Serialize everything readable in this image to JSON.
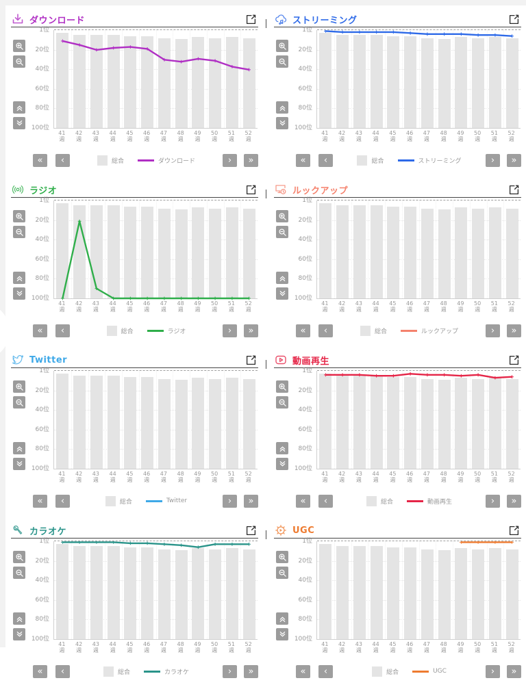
{
  "legend": {
    "overall_label": "総合",
    "overall_color": "#e4e4e4"
  },
  "controls": {
    "first": "«",
    "prev": "‹",
    "next": "›",
    "last": "»"
  },
  "axes": {
    "y_labels": [
      "1位",
      "20位",
      "40位",
      "60位",
      "80位",
      "100位"
    ],
    "weeks": [
      "41",
      "42",
      "43",
      "44",
      "45",
      "46",
      "47",
      "48",
      "49",
      "50",
      "51",
      "52"
    ],
    "week_suffix": "週"
  },
  "panels": [
    {
      "title": "ダウンロード",
      "color": "#b02fc4",
      "icon": "download-icon"
    },
    {
      "title": "ストリーミング",
      "color": "#2e6ae8",
      "icon": "streaming-icon"
    },
    {
      "title": "ラジオ",
      "color": "#2fae4a",
      "icon": "radio-icon"
    },
    {
      "title": "ルックアップ",
      "color": "#f5826d",
      "icon": "lookup-icon"
    },
    {
      "title": "Twitter",
      "color": "#3fa9e8",
      "icon": "twitter-icon"
    },
    {
      "title": "動画再生",
      "color": "#e52547",
      "icon": "video-play-icon"
    },
    {
      "title": "カラオケ",
      "color": "#2a948a",
      "icon": "karaoke-icon"
    },
    {
      "title": "UGC",
      "color": "#ee7b30",
      "icon": "ugc-icon"
    }
  ],
  "chart_data": [
    {
      "type": "bar",
      "title": "ダウンロード",
      "categories": [
        "41週",
        "42週",
        "43週",
        "44週",
        "45週",
        "46週",
        "47週",
        "48週",
        "49週",
        "50週",
        "51週",
        "52週"
      ],
      "y_ticks": [
        "1位",
        "20位",
        "40位",
        "60位",
        "80位",
        "100位"
      ],
      "y_range": [
        1,
        100
      ],
      "y_inverted": true,
      "legend_position": "bottom",
      "series": [
        {
          "name": "総合",
          "type": "bar",
          "color": "#e4e4e4",
          "values": [
            4,
            6,
            6,
            6,
            7,
            7,
            9,
            10,
            8,
            9,
            8,
            9
          ]
        },
        {
          "name": "ダウンロード",
          "type": "line",
          "color": "#b02fc4",
          "values": [
            12,
            16,
            21,
            19,
            18,
            20,
            31,
            33,
            30,
            32,
            38,
            41
          ]
        }
      ]
    },
    {
      "type": "bar",
      "title": "ストリーミング",
      "categories": [
        "41週",
        "42週",
        "43週",
        "44週",
        "45週",
        "46週",
        "47週",
        "48週",
        "49週",
        "50週",
        "51週",
        "52週"
      ],
      "y_ticks": [
        "1位",
        "20位",
        "40位",
        "60位",
        "80位",
        "100位"
      ],
      "y_range": [
        1,
        100
      ],
      "y_inverted": true,
      "legend_position": "bottom",
      "series": [
        {
          "name": "総合",
          "type": "bar",
          "color": "#e4e4e4",
          "values": [
            4,
            6,
            6,
            6,
            7,
            7,
            9,
            10,
            8,
            9,
            8,
            9
          ]
        },
        {
          "name": "ストリーミング",
          "type": "line",
          "color": "#2e6ae8",
          "values": [
            2,
            3,
            3,
            3,
            3,
            4,
            5,
            5,
            5,
            6,
            6,
            7
          ]
        }
      ]
    },
    {
      "type": "bar",
      "title": "ラジオ",
      "categories": [
        "41週",
        "42週",
        "43週",
        "44週",
        "45週",
        "46週",
        "47週",
        "48週",
        "49週",
        "50週",
        "51週",
        "52週"
      ],
      "y_ticks": [
        "1位",
        "20位",
        "40位",
        "60位",
        "80位",
        "100位"
      ],
      "y_range": [
        1,
        100
      ],
      "y_inverted": true,
      "legend_position": "bottom",
      "series": [
        {
          "name": "総合",
          "type": "bar",
          "color": "#e4e4e4",
          "values": [
            4,
            6,
            6,
            6,
            7,
            7,
            9,
            10,
            8,
            9,
            8,
            9
          ]
        },
        {
          "name": "ラジオ",
          "type": "line",
          "color": "#2fae4a",
          "values": [
            100,
            22,
            90,
            100,
            100,
            100,
            100,
            100,
            100,
            100,
            100,
            100
          ]
        }
      ]
    },
    {
      "type": "bar",
      "title": "ルックアップ",
      "categories": [
        "41週",
        "42週",
        "43週",
        "44週",
        "45週",
        "46週",
        "47週",
        "48週",
        "49週",
        "50週",
        "51週",
        "52週"
      ],
      "y_ticks": [
        "1位",
        "20位",
        "40位",
        "60位",
        "80位",
        "100位"
      ],
      "y_range": [
        1,
        100
      ],
      "y_inverted": true,
      "legend_position": "bottom",
      "series": [
        {
          "name": "総合",
          "type": "bar",
          "color": "#e4e4e4",
          "values": [
            4,
            6,
            6,
            6,
            7,
            7,
            9,
            10,
            8,
            9,
            8,
            9
          ]
        },
        {
          "name": "ルックアップ",
          "type": "line",
          "color": "#f5826d",
          "values": []
        }
      ]
    },
    {
      "type": "bar",
      "title": "Twitter",
      "categories": [
        "41週",
        "42週",
        "43週",
        "44週",
        "45週",
        "46週",
        "47週",
        "48週",
        "49週",
        "50週",
        "51週",
        "52週"
      ],
      "y_ticks": [
        "1位",
        "20位",
        "40位",
        "60位",
        "80位",
        "100位"
      ],
      "y_range": [
        1,
        100
      ],
      "y_inverted": true,
      "legend_position": "bottom",
      "series": [
        {
          "name": "総合",
          "type": "bar",
          "color": "#e4e4e4",
          "values": [
            4,
            6,
            6,
            6,
            7,
            7,
            9,
            10,
            8,
            9,
            8,
            9
          ]
        },
        {
          "name": "Twitter",
          "type": "line",
          "color": "#3fa9e8",
          "values": []
        }
      ]
    },
    {
      "type": "bar",
      "title": "動画再生",
      "categories": [
        "41週",
        "42週",
        "43週",
        "44週",
        "45週",
        "46週",
        "47週",
        "48週",
        "49週",
        "50週",
        "51週",
        "52週"
      ],
      "y_ticks": [
        "1位",
        "20位",
        "40位",
        "60位",
        "80位",
        "100位"
      ],
      "y_range": [
        1,
        100
      ],
      "y_inverted": true,
      "legend_position": "bottom",
      "series": [
        {
          "name": "総合",
          "type": "bar",
          "color": "#e4e4e4",
          "values": [
            4,
            6,
            6,
            6,
            7,
            7,
            9,
            10,
            8,
            9,
            8,
            9
          ]
        },
        {
          "name": "動画再生",
          "type": "line",
          "color": "#e52547",
          "values": [
            5,
            5,
            5,
            6,
            6,
            4,
            5,
            5,
            6,
            5,
            8,
            7
          ]
        }
      ]
    },
    {
      "type": "bar",
      "title": "カラオケ",
      "categories": [
        "41週",
        "42週",
        "43週",
        "44週",
        "45週",
        "46週",
        "47週",
        "48週",
        "49週",
        "50週",
        "51週",
        "52週"
      ],
      "y_ticks": [
        "1位",
        "20位",
        "40位",
        "60位",
        "80位",
        "100位"
      ],
      "y_range": [
        1,
        100
      ],
      "y_inverted": true,
      "legend_position": "bottom",
      "series": [
        {
          "name": "総合",
          "type": "bar",
          "color": "#e4e4e4",
          "values": [
            4,
            6,
            6,
            6,
            7,
            7,
            9,
            10,
            8,
            9,
            8,
            9
          ]
        },
        {
          "name": "カラオケ",
          "type": "line",
          "color": "#2a948a",
          "values": [
            2,
            2,
            2,
            2,
            3,
            3,
            4,
            5,
            7,
            4,
            4,
            4
          ]
        }
      ]
    },
    {
      "type": "bar",
      "title": "UGC",
      "categories": [
        "41週",
        "42週",
        "43週",
        "44週",
        "45週",
        "46週",
        "47週",
        "48週",
        "49週",
        "50週",
        "51週",
        "52週"
      ],
      "y_ticks": [
        "1位",
        "20位",
        "40位",
        "60位",
        "80位",
        "100位"
      ],
      "y_range": [
        1,
        100
      ],
      "y_inverted": true,
      "legend_position": "bottom",
      "series": [
        {
          "name": "総合",
          "type": "bar",
          "color": "#e4e4e4",
          "values": [
            4,
            6,
            6,
            6,
            7,
            7,
            9,
            10,
            8,
            9,
            8,
            9
          ]
        },
        {
          "name": "UGC",
          "type": "line",
          "color": "#ee7b30",
          "values": [
            null,
            null,
            null,
            null,
            null,
            null,
            null,
            null,
            2,
            2,
            2,
            2
          ]
        }
      ]
    }
  ]
}
